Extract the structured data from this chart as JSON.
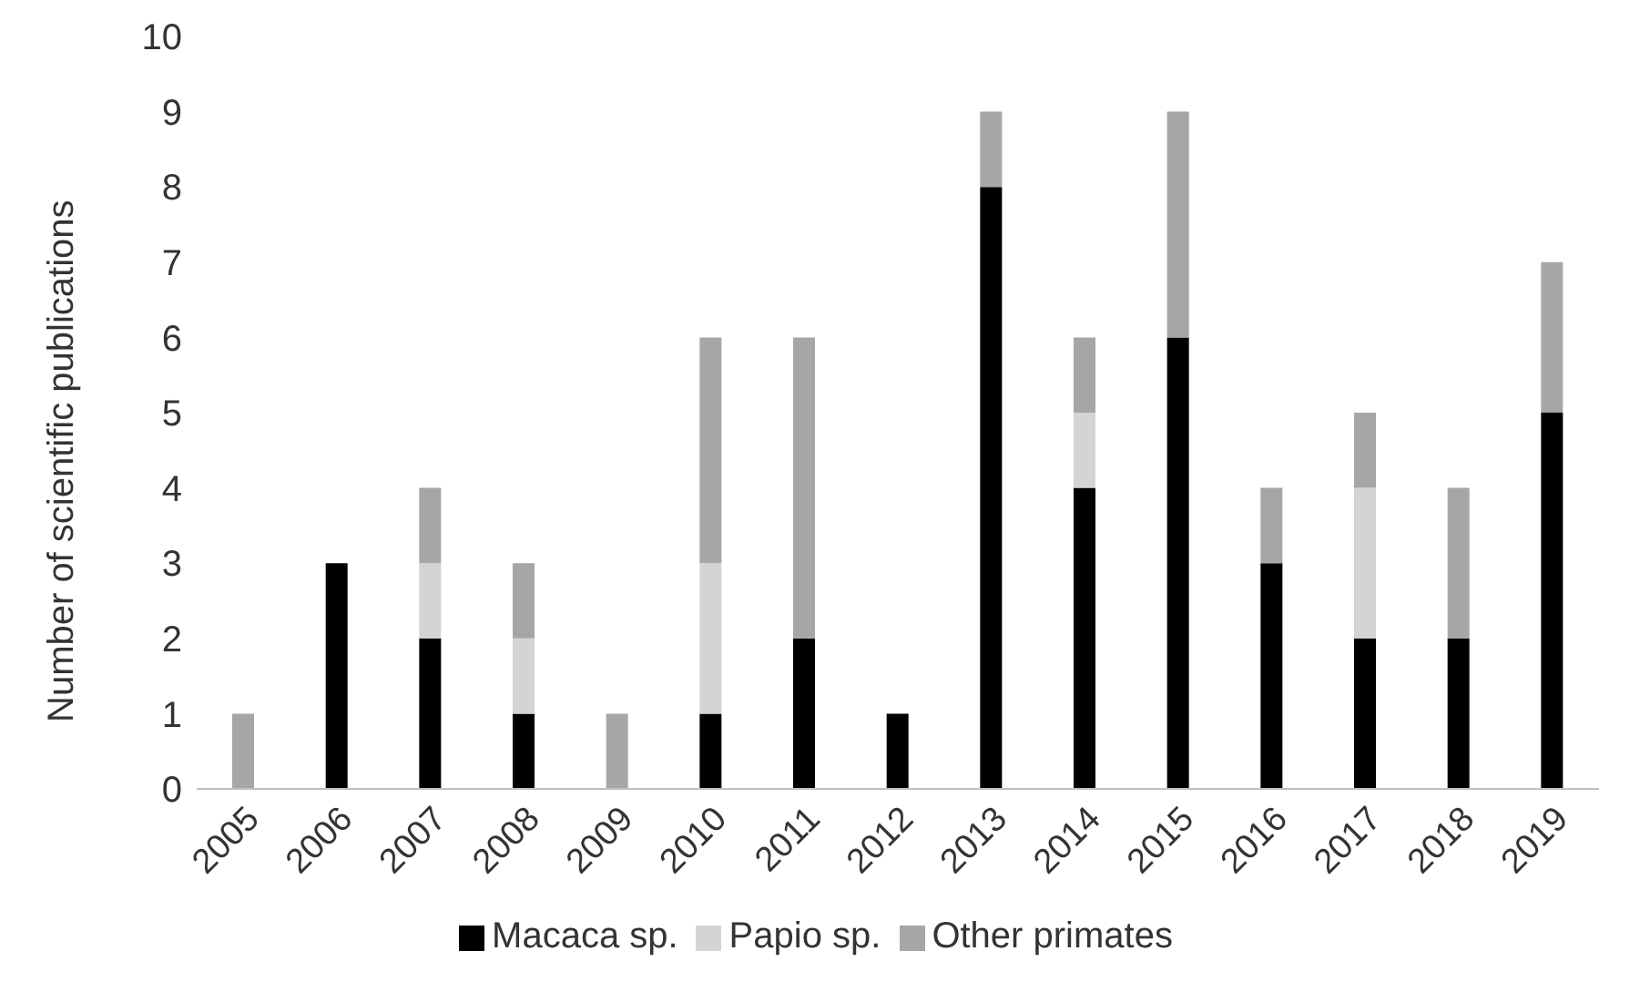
{
  "chart_data": {
    "type": "bar",
    "stacked": true,
    "ylabel": "Number of scientific publications",
    "categories": [
      "2005",
      "2006",
      "2007",
      "2008",
      "2009",
      "2010",
      "2011",
      "2012",
      "2013",
      "2014",
      "2015",
      "2016",
      "2017",
      "2018",
      "2019"
    ],
    "series": [
      {
        "name": "Macaca sp.",
        "color": "#000000",
        "values": [
          0,
          3,
          2,
          1,
          0,
          1,
          2,
          1,
          8,
          4,
          6,
          3,
          2,
          2,
          5
        ]
      },
      {
        "name": "Papio sp.",
        "color": "#d4d4d4",
        "values": [
          0,
          0,
          1,
          1,
          0,
          2,
          0,
          0,
          0,
          1,
          0,
          0,
          2,
          0,
          0
        ]
      },
      {
        "name": "Other primates",
        "color": "#a6a6a6",
        "values": [
          1,
          0,
          1,
          1,
          1,
          3,
          4,
          0,
          1,
          1,
          3,
          1,
          1,
          2,
          2
        ]
      }
    ],
    "ylim": [
      0,
      10
    ],
    "yticks": [
      0,
      1,
      2,
      3,
      4,
      5,
      6,
      7,
      8,
      9,
      10
    ],
    "grid": false,
    "legend": "bottom"
  }
}
